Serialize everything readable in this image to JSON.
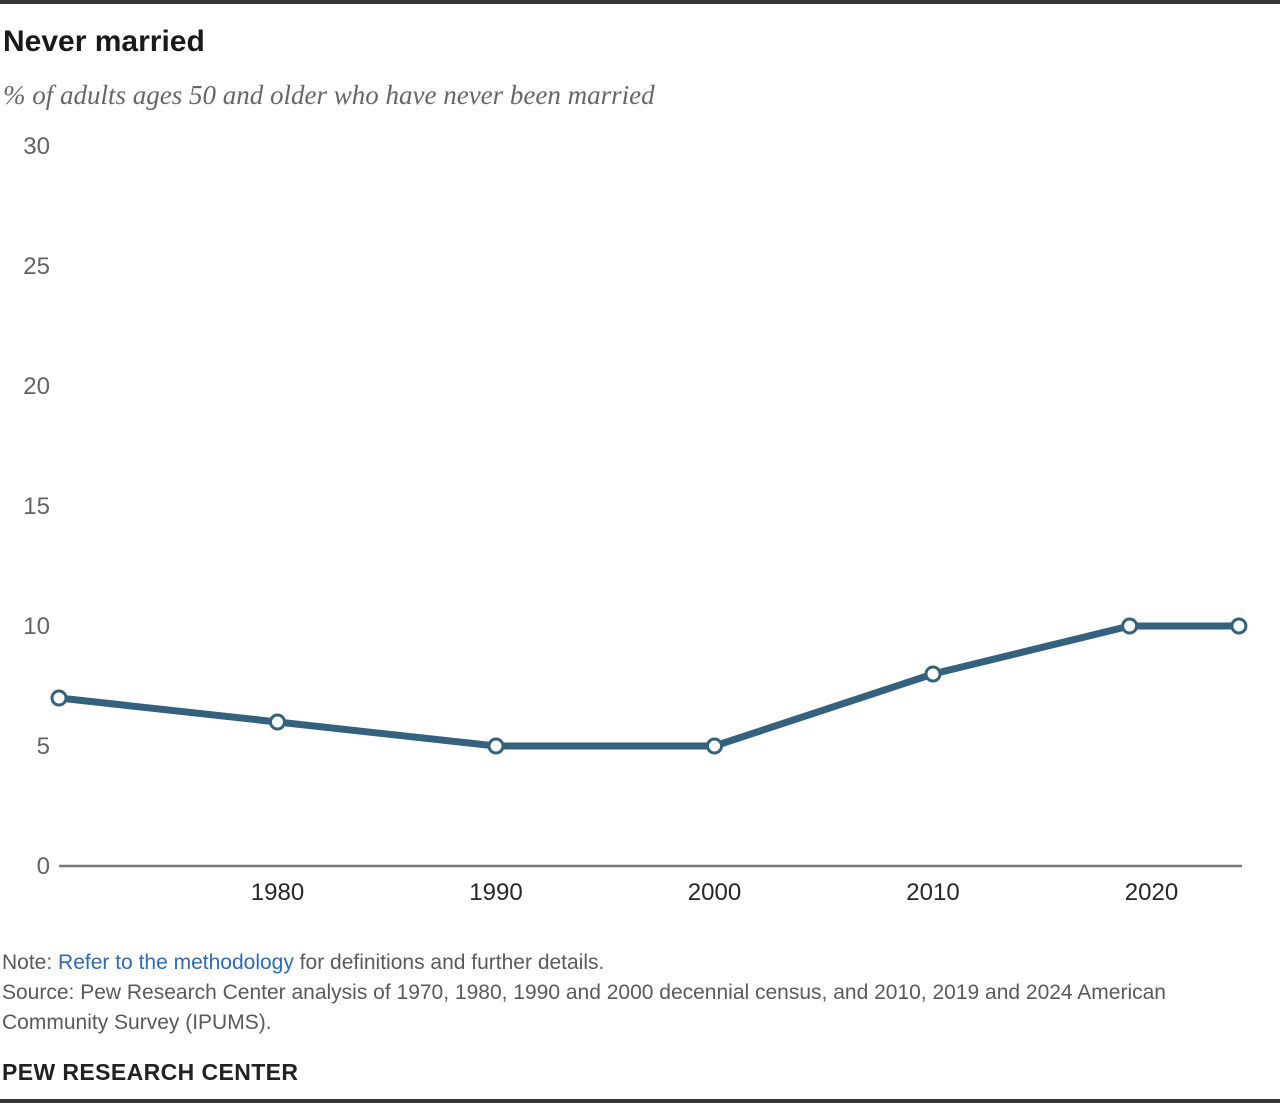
{
  "header": {
    "title": "Never married",
    "subtitle": "% of adults ages 50 and older who have never been married"
  },
  "notes": {
    "note_prefix": "Note: ",
    "note_link": "Refer to the methodology",
    "note_suffix": " for definitions and further details.",
    "source": "Source: Pew Research Center analysis of 1970, 1980, 1990 and 2000 decennial census, and 2010, 2019 and 2024 American Community Survey (IPUMS)."
  },
  "footer": {
    "brand": "PEW RESEARCH CENTER"
  },
  "colors": {
    "line": "#33617e",
    "marker_fill": "#ffffff",
    "axis_line": "#757575",
    "y_tick_label": "#636363",
    "x_tick_label": "#272727",
    "link_blue": "#2e6bb2",
    "border_bar": "#373737",
    "note_gray": "#5a5a5a"
  },
  "chart_data": {
    "type": "line",
    "title": "Never married",
    "subtitle": "% of adults ages 50 and older who have never been married",
    "x": [
      1970,
      1980,
      1990,
      2000,
      2010,
      2019,
      2024
    ],
    "series": [
      {
        "name": "Never married",
        "values": [
          7,
          6,
          5,
          5,
          8,
          10,
          10
        ]
      }
    ],
    "x_tick_values": [
      1980,
      1990,
      2000,
      2010,
      2020
    ],
    "x_tick_labels": [
      "1980",
      "1990",
      "2000",
      "2010",
      "2020"
    ],
    "y_ticks": [
      0,
      5,
      10,
      15,
      20,
      25,
      30
    ],
    "xlim": [
      1970,
      2024
    ],
    "ylim": [
      0,
      30
    ],
    "grid": false,
    "legend": "none",
    "marker": "open-circle"
  }
}
